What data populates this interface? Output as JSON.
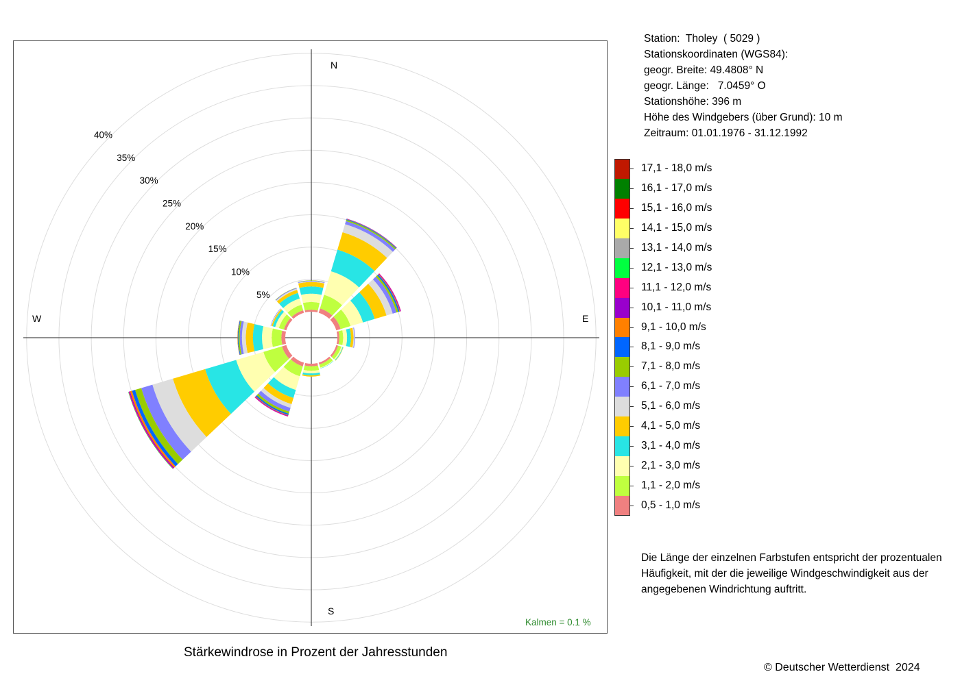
{
  "station": {
    "lines": [
      "Station:  Tholey  ( 5029 )",
      "Stationskoordinaten (WGS84):",
      "geogr. Breite: 49.4808° N",
      "geogr. Länge:   7.0459° O",
      "Stationshöhe: 396 m",
      "Höhe des Windgebers (über Grund): 10 m",
      "Zeitraum: 01.01.1976 - 31.12.1992"
    ]
  },
  "note": {
    "lines": [
      "Die Länge der einzelnen Farbstufen entspricht der prozentualen",
      "Häufigkeit, mit der die jeweilige Windgeschwindigkeit aus der",
      "angegebenen Windrichtung auftritt."
    ]
  },
  "title": "Stärkewindrose in Prozent der Jahresstunden",
  "copyright": "© Deutscher Wetterdienst  2024",
  "calm_label": "Kalmen  =  0.1 %",
  "compass": {
    "north": "N",
    "east": "E",
    "south": "S",
    "west": "W"
  },
  "chart_data": {
    "type": "polar-stacked-bar",
    "unit": "%",
    "ring_labels": [
      "5%",
      "10%",
      "15%",
      "20%",
      "25%",
      "30%",
      "35%",
      "40%"
    ],
    "ring_values": [
      5,
      10,
      15,
      20,
      25,
      30,
      35,
      40
    ],
    "directions_deg": [
      0,
      30,
      60,
      90,
      120,
      150,
      180,
      210,
      240,
      270,
      300,
      330
    ],
    "speed_classes": [
      {
        "label": "0,5 - 1,0 m/s",
        "color": "#F08080"
      },
      {
        "label": "1,1 - 2,0 m/s",
        "color": "#BFFF3F"
      },
      {
        "label": "2,1 - 3,0 m/s",
        "color": "#FFFFB0"
      },
      {
        "label": "3,1 - 4,0 m/s",
        "color": "#28E5E5"
      },
      {
        "label": "4,1 - 5,0 m/s",
        "color": "#FFCC00"
      },
      {
        "label": "5,1 - 6,0 m/s",
        "color": "#DDDDDD"
      },
      {
        "label": "6,1 - 7,0 m/s",
        "color": "#8080FF"
      },
      {
        "label": "7,1 - 8,0 m/s",
        "color": "#99CC00"
      },
      {
        "label": "8,1 - 9,0 m/s",
        "color": "#0066FF"
      },
      {
        "label": "9,1 - 10,0 m/s",
        "color": "#FF8000"
      },
      {
        "label": "10,1 - 11,0 m/s",
        "color": "#9900CC"
      },
      {
        "label": "11,1 - 12,0 m/s",
        "color": "#FF0080"
      },
      {
        "label": "12,1 - 13,0 m/s",
        "color": "#00FF40"
      },
      {
        "label": "13,1 - 14,0 m/s",
        "color": "#AAAAAA"
      },
      {
        "label": "14,1 - 15,0 m/s",
        "color": "#FFFF66"
      },
      {
        "label": "15,1 - 16,0 m/s",
        "color": "#FF0000"
      },
      {
        "label": "16,1 - 17,0 m/s",
        "color": "#008000"
      },
      {
        "label": "17,1 - 18,0 m/s",
        "color": "#C01800"
      }
    ],
    "values": [
      [
        0.3,
        1.2,
        1.3,
        1.1,
        0.7,
        0.1,
        0.1,
        0.05,
        0,
        0,
        0,
        0,
        0,
        0,
        0,
        0,
        0,
        0
      ],
      [
        0.7,
        2.2,
        3.8,
        3.5,
        2.8,
        1.3,
        0.5,
        0.2,
        0.1,
        0.05,
        0.05,
        0,
        0,
        0,
        0,
        0,
        0,
        0
      ],
      [
        0.7,
        1.6,
        2.0,
        1.9,
        1.9,
        1.0,
        0.6,
        0.3,
        0.2,
        0.1,
        0.1,
        0.05,
        0,
        0,
        0,
        0,
        0,
        0
      ],
      [
        0.3,
        0.6,
        0.6,
        0.6,
        0.4,
        0.15,
        0.1,
        0,
        0,
        0,
        0,
        0,
        0,
        0,
        0,
        0,
        0,
        0
      ],
      [
        0.3,
        0.5,
        0.2,
        0.1,
        0.05,
        0,
        0,
        0,
        0,
        0,
        0,
        0,
        0,
        0,
        0,
        0,
        0,
        0
      ],
      [
        0.3,
        0.5,
        0.1,
        0.05,
        0,
        0,
        0,
        0,
        0,
        0,
        0,
        0,
        0,
        0,
        0,
        0,
        0,
        0
      ],
      [
        0.4,
        0.7,
        0.4,
        0.3,
        0.2,
        0,
        0,
        0,
        0,
        0,
        0,
        0,
        0,
        0,
        0,
        0,
        0,
        0
      ],
      [
        0.6,
        1.6,
        2.2,
        1.3,
        1.0,
        0.6,
        0.6,
        0.35,
        0.2,
        0.1,
        0.1,
        0.05,
        0,
        0,
        0,
        0,
        0,
        0
      ],
      [
        0.7,
        3.0,
        4.4,
        5.0,
        5.2,
        3.3,
        1.8,
        1.0,
        0.5,
        0.3,
        0.15,
        0.1,
        0.05,
        0,
        0,
        0,
        0,
        0
      ],
      [
        0.6,
        1.5,
        1.5,
        1.4,
        1.1,
        0.6,
        0.35,
        0.2,
        0.1,
        0.05,
        0,
        0,
        0,
        0,
        0,
        0,
        0,
        0
      ],
      [
        0.4,
        0.8,
        0.6,
        0.4,
        0.2,
        0.1,
        0.05,
        0,
        0,
        0,
        0,
        0,
        0,
        0,
        0,
        0,
        0,
        0
      ],
      [
        0.4,
        0.9,
        1.0,
        0.9,
        0.5,
        0.2,
        0.1,
        0.05,
        0,
        0,
        0,
        0,
        0,
        0,
        0,
        0,
        0,
        0
      ]
    ],
    "calm_percent": 0.1
  }
}
